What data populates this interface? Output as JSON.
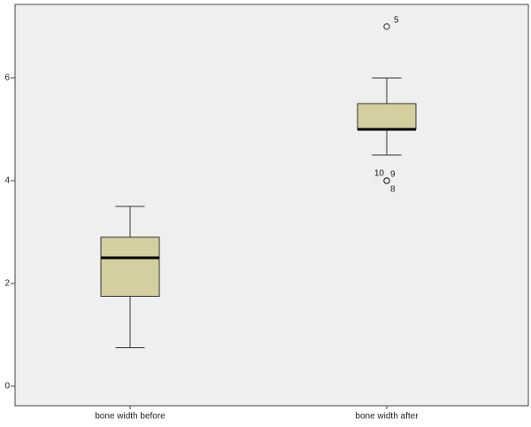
{
  "chart_data": {
    "type": "box",
    "categories": [
      "bone width before",
      "bone width after"
    ],
    "boxes": [
      {
        "whisker_low": 0.75,
        "q1": 1.75,
        "median": 2.5,
        "q3": 2.9,
        "whisker_high": 3.5,
        "outliers": []
      },
      {
        "whisker_low": 4.5,
        "q1": 5.0,
        "median": 5.0,
        "q3": 5.5,
        "whisker_high": 6.0,
        "outliers": [
          {
            "value": 7,
            "label": "5"
          },
          {
            "value": 4,
            "label": "10"
          },
          {
            "value": 4,
            "label": "9"
          },
          {
            "value": 4,
            "label": "8"
          }
        ]
      }
    ],
    "color": "#d4cf9e",
    "ylim": [
      -0.38,
      7.43
    ],
    "yticks": [
      0,
      2,
      4,
      6
    ],
    "grid": false
  }
}
